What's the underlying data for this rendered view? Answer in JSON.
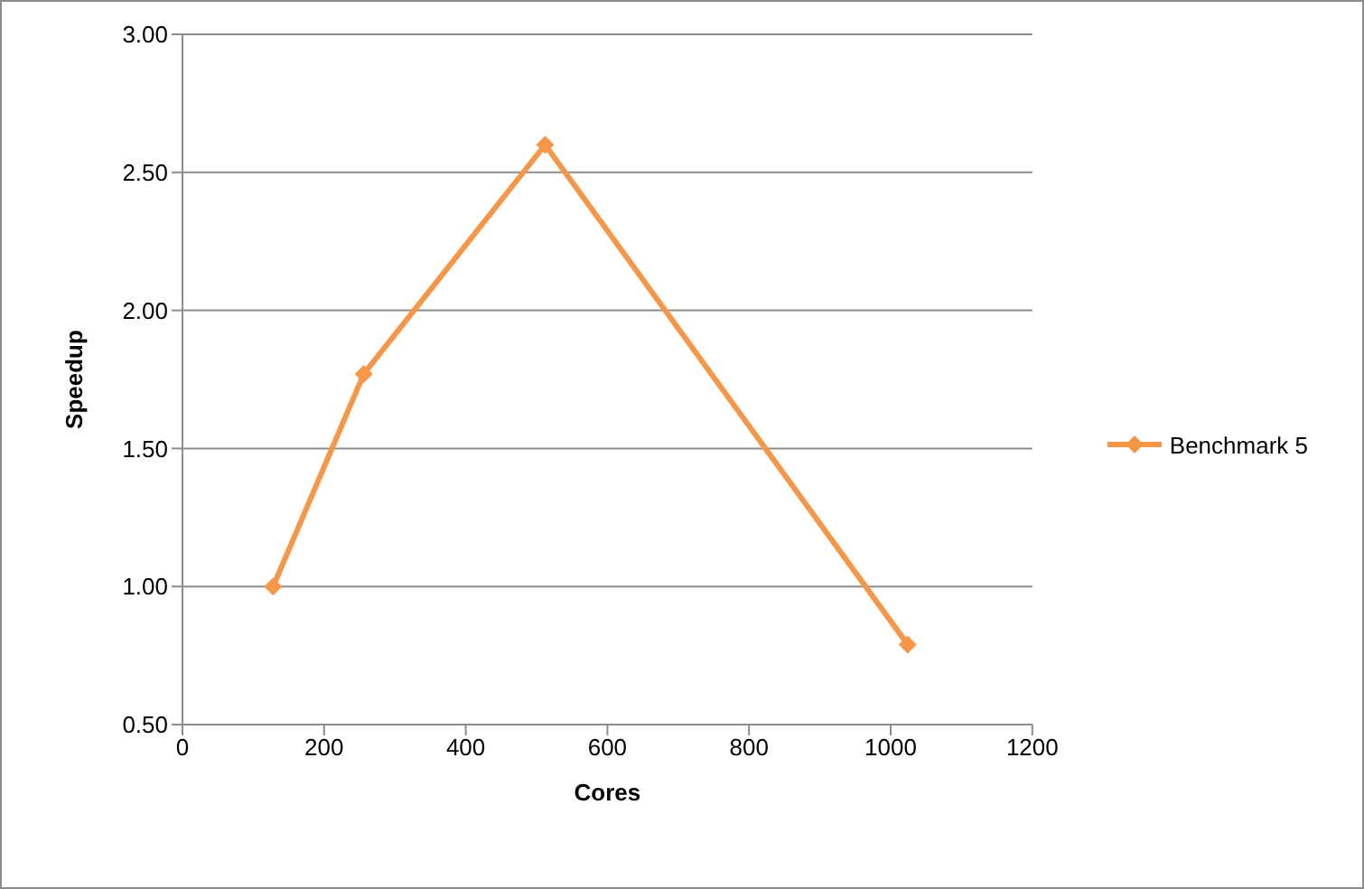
{
  "chart_data": {
    "type": "line",
    "xlabel": "Cores",
    "ylabel": "Speedup",
    "x": [
      128,
      256,
      512,
      1024
    ],
    "series": [
      {
        "name": "Benchmark 5",
        "color": "#f79646",
        "values": [
          1.0,
          1.77,
          2.6,
          0.79
        ]
      }
    ],
    "xlim": [
      0,
      1200
    ],
    "xticks": [
      0,
      200,
      400,
      600,
      800,
      1000,
      1200
    ],
    "ylim": [
      0.5,
      3.0
    ],
    "yticks": [
      {
        "value": 0.5,
        "label": "0.50"
      },
      {
        "value": 1.0,
        "label": "1.00"
      },
      {
        "value": 1.5,
        "label": "1.50"
      },
      {
        "value": 2.0,
        "label": "2.00"
      },
      {
        "value": 2.5,
        "label": "2.50"
      },
      {
        "value": 3.0,
        "label": "3.00"
      }
    ],
    "grid": "y",
    "legend": "right",
    "marker": "diamond",
    "line_style": "solid"
  }
}
